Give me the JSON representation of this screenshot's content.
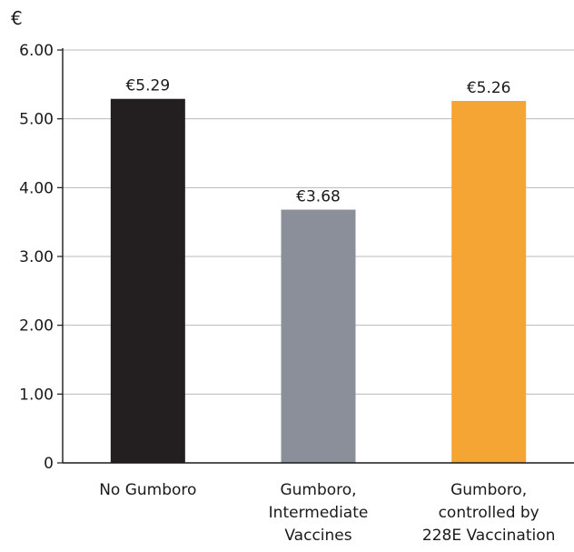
{
  "chart_data": {
    "type": "bar",
    "title": "",
    "ylabel": "€",
    "xlabel": "",
    "ylim": [
      0,
      6
    ],
    "yticks": [
      0,
      1,
      2,
      3,
      4,
      5,
      6
    ],
    "ytick_labels": [
      "0",
      "1.00",
      "2.00",
      "3.00",
      "4.00",
      "5.00",
      "6.00"
    ],
    "grid": "horizontal",
    "legend": "none",
    "categories": [
      [
        "No Gumboro"
      ],
      [
        "Gumboro,",
        "Intermediate",
        "Vaccines"
      ],
      [
        "Gumboro,",
        "controlled by",
        "228E Vaccination"
      ]
    ],
    "values": [
      5.29,
      3.68,
      5.26
    ],
    "value_labels": [
      "€5.29",
      "€3.68",
      "€5.26"
    ],
    "colors": [
      "#231f20",
      "#8a8f9a",
      "#f5a533"
    ]
  },
  "colors": {
    "grid": "#b8b8b8",
    "axis": "#1a1a1a",
    "text": "#1a1a1a"
  }
}
